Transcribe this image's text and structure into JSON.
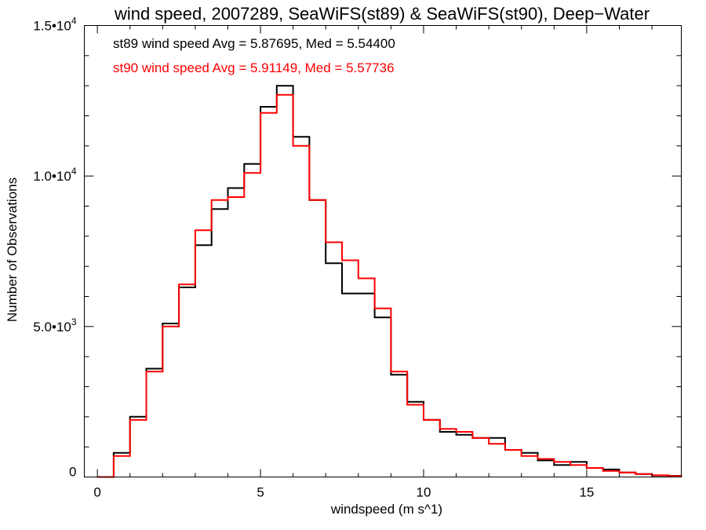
{
  "chart_data": {
    "type": "line",
    "title": "wind speed, 2007289, SeaWiFS(st89) & SeaWiFS(st90), Deep−Water",
    "xlabel": "windspeed (m s^1)",
    "ylabel": "Number of Observations",
    "xlim": [
      -0.4,
      17.9
    ],
    "ylim": [
      0,
      15000
    ],
    "x_ticks": [
      {
        "value": 0,
        "label": "0"
      },
      {
        "value": 5,
        "label": "5"
      },
      {
        "value": 10,
        "label": "10"
      },
      {
        "value": 15,
        "label": "15"
      }
    ],
    "y_ticks": [
      {
        "value": 0,
        "mantissa": "0",
        "exponent": ""
      },
      {
        "value": 5000,
        "mantissa": "5.0•10",
        "exponent": "3"
      },
      {
        "value": 10000,
        "mantissa": "1.0•10",
        "exponent": "4"
      },
      {
        "value": 15000,
        "mantissa": "1.5•10",
        "exponent": "4"
      }
    ],
    "step_plot": true,
    "series": [
      {
        "name": "st89",
        "color": "#000000",
        "label": "st89 wind speed Avg = 5.87695, Med = 5.54400",
        "x": [
          0,
          0.5,
          1,
          1.5,
          2,
          2.5,
          3,
          3.5,
          4,
          4.5,
          5,
          5.5,
          6,
          6.5,
          7,
          7.5,
          8,
          8.5,
          9,
          9.5,
          10,
          10.5,
          11,
          11.5,
          12,
          12.5,
          13,
          13.5,
          14,
          14.5,
          15,
          15.5,
          16,
          16.5,
          17,
          17.5,
          17.9
        ],
        "y": [
          0,
          800,
          2000,
          3600,
          5100,
          6300,
          7700,
          8900,
          9600,
          10400,
          12300,
          13000,
          11300,
          9200,
          7100,
          6100,
          6100,
          5300,
          3400,
          2500,
          1900,
          1500,
          1400,
          1300,
          1300,
          900,
          800,
          550,
          400,
          500,
          300,
          250,
          150,
          100,
          50,
          40,
          0
        ]
      },
      {
        "name": "st90",
        "color": "#ff0000",
        "label": "st90 wind speed Avg = 5.91149, Med = 5.57736",
        "x": [
          0,
          0.5,
          1,
          1.5,
          2,
          2.5,
          3,
          3.5,
          4,
          4.5,
          5,
          5.5,
          6,
          6.5,
          7,
          7.5,
          8,
          8.5,
          9,
          9.5,
          10,
          10.5,
          11,
          11.5,
          12,
          12.5,
          13,
          13.5,
          14,
          14.5,
          15,
          15.5,
          16,
          16.5,
          17,
          17.5,
          17.9
        ],
        "y": [
          0,
          700,
          1900,
          3500,
          5000,
          6400,
          8200,
          9200,
          9300,
          10100,
          12100,
          12700,
          11000,
          9200,
          7800,
          7200,
          6600,
          5600,
          3500,
          2400,
          1900,
          1600,
          1500,
          1300,
          1100,
          900,
          700,
          600,
          500,
          400,
          300,
          200,
          150,
          100,
          60,
          30,
          0
        ]
      }
    ]
  }
}
